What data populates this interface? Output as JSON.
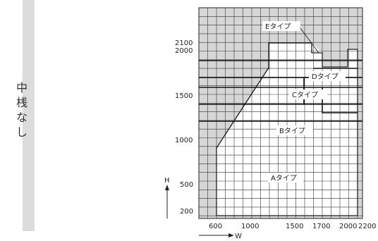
{
  "side_label": [
    "中",
    "桟",
    "な",
    "し"
  ],
  "chart_data": {
    "type": "diagram",
    "x_unit_label": "W",
    "y_unit_label": "H",
    "x_ticks": [
      "600",
      "1000",
      "1500",
      "1700",
      "2000",
      "2200"
    ],
    "y_ticks": [
      "200",
      "500",
      "1000",
      "1500",
      "2000",
      "2100"
    ],
    "regions": [
      {
        "label": "Aタイプ"
      },
      {
        "label": "Bタイプ"
      },
      {
        "label": "Cタイプ"
      },
      {
        "label": "Dタイプ"
      },
      {
        "label": "Eタイプ"
      }
    ],
    "grid": true
  }
}
